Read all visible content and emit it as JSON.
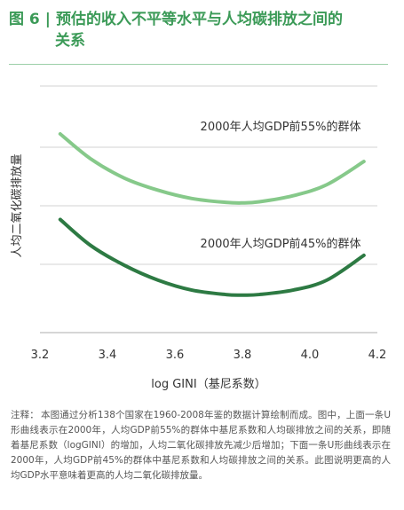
{
  "figure": {
    "label": "图 6",
    "separator": "|",
    "title_line1": "预估的收入不平等水平与人均碳排放之间的",
    "title_line2": "关系"
  },
  "chart_data": {
    "type": "line",
    "xlabel": "log GINI（基尼系数）",
    "ylabel": "人均二氧化碳排放量",
    "xlim": [
      3.2,
      4.2
    ],
    "x_ticks": [
      "3.2",
      "3.4",
      "3.6",
      "3.8",
      "4.0",
      "4.2"
    ],
    "y_ticks_shown": false,
    "grid": "horizontal",
    "series": [
      {
        "name": "2000年人均GDP前55%的群体",
        "color": "#86c98a",
        "x": [
          3.26,
          3.35,
          3.45,
          3.55,
          3.65,
          3.75,
          3.8,
          3.85,
          3.95,
          4.05,
          4.16
        ],
        "y": [
          5.1,
          4.65,
          4.3,
          4.08,
          3.93,
          3.86,
          3.85,
          3.87,
          3.98,
          4.18,
          4.6
        ]
      },
      {
        "name": "2000年人均GDP前45%的群体",
        "color": "#2d7a43",
        "x": [
          3.26,
          3.35,
          3.45,
          3.55,
          3.65,
          3.75,
          3.8,
          3.85,
          3.95,
          4.05,
          4.16
        ],
        "y": [
          3.55,
          3.08,
          2.72,
          2.45,
          2.27,
          2.19,
          2.18,
          2.19,
          2.27,
          2.45,
          2.9
        ]
      }
    ]
  },
  "footnote": {
    "label": "注释：",
    "text": "本图通过分析138个国家在1960-2008年鉴的数据计算绘制而成。图中，上面一条U形曲线表示在2000年，人均GDP前55%的群体中基尼系数和人均碳排放之间的关系，即随着基尼系数（logGINI）的增加，人均二氧化碳排放先减少后增加；下面一条U形曲线表示在2000年，人均GDP前45%的群体中基尼系数和人均碳排放之间的关系。此图说明更高的人均GDP水平意味着更高的人均二氧化碳排放量。"
  }
}
